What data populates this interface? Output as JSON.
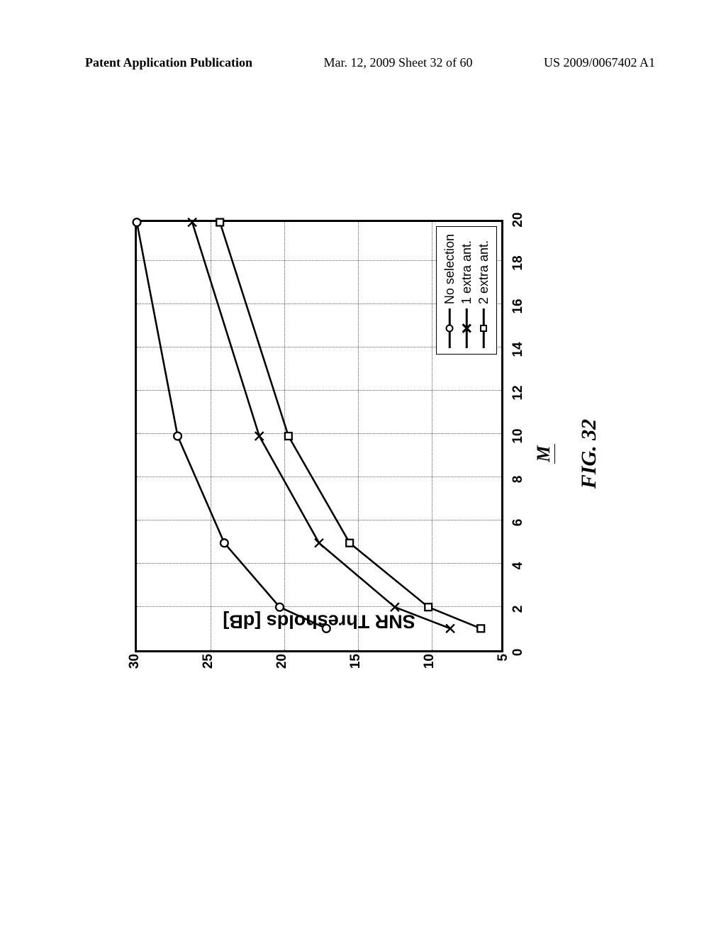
{
  "header": {
    "left": "Patent Application Publication",
    "center": "Mar. 12, 2009  Sheet 32 of 60",
    "right": "US 2009/0067402 A1"
  },
  "figure": {
    "caption": "FIG. 32",
    "xlabel": "M",
    "ylabel": "SNR Thresholds  [dB]",
    "type": "line",
    "xlim": [
      0,
      20
    ],
    "ylim": [
      5,
      30
    ],
    "xticks": [
      0,
      2,
      4,
      6,
      8,
      10,
      12,
      14,
      16,
      18,
      20
    ],
    "yticks": [
      5,
      10,
      15,
      20,
      25,
      30
    ],
    "xgrid_at": [
      2,
      4,
      6,
      8,
      10,
      12,
      14,
      16,
      18
    ],
    "ygrid_at": [
      10,
      15,
      20,
      25
    ],
    "background_color": "#ffffff",
    "grid_color": "#666666",
    "axis_color": "#000000",
    "line_color": "#000000",
    "line_width": 2.6,
    "marker_size": 11,
    "label_fontsize": 19,
    "title_fontsize": 30,
    "legend": {
      "position": "bottom-right",
      "items": [
        {
          "label": "No selection",
          "marker": "circle"
        },
        {
          "label": "1 extra ant.",
          "marker": "x"
        },
        {
          "label": "2 extra ant.",
          "marker": "square"
        }
      ]
    },
    "series": [
      {
        "name": "No selection",
        "marker": "circle",
        "x": [
          1,
          2,
          5,
          10,
          20
        ],
        "y": [
          17.0,
          20.2,
          24.0,
          27.2,
          30.0
        ]
      },
      {
        "name": "1 extra ant.",
        "marker": "x",
        "x": [
          1,
          2,
          5,
          10,
          20
        ],
        "y": [
          8.5,
          12.3,
          17.5,
          21.6,
          26.2
        ]
      },
      {
        "name": "2 extra ant.",
        "marker": "square",
        "x": [
          1,
          2,
          5,
          10,
          20
        ],
        "y": [
          6.4,
          10.0,
          15.4,
          19.6,
          24.3
        ]
      }
    ]
  }
}
